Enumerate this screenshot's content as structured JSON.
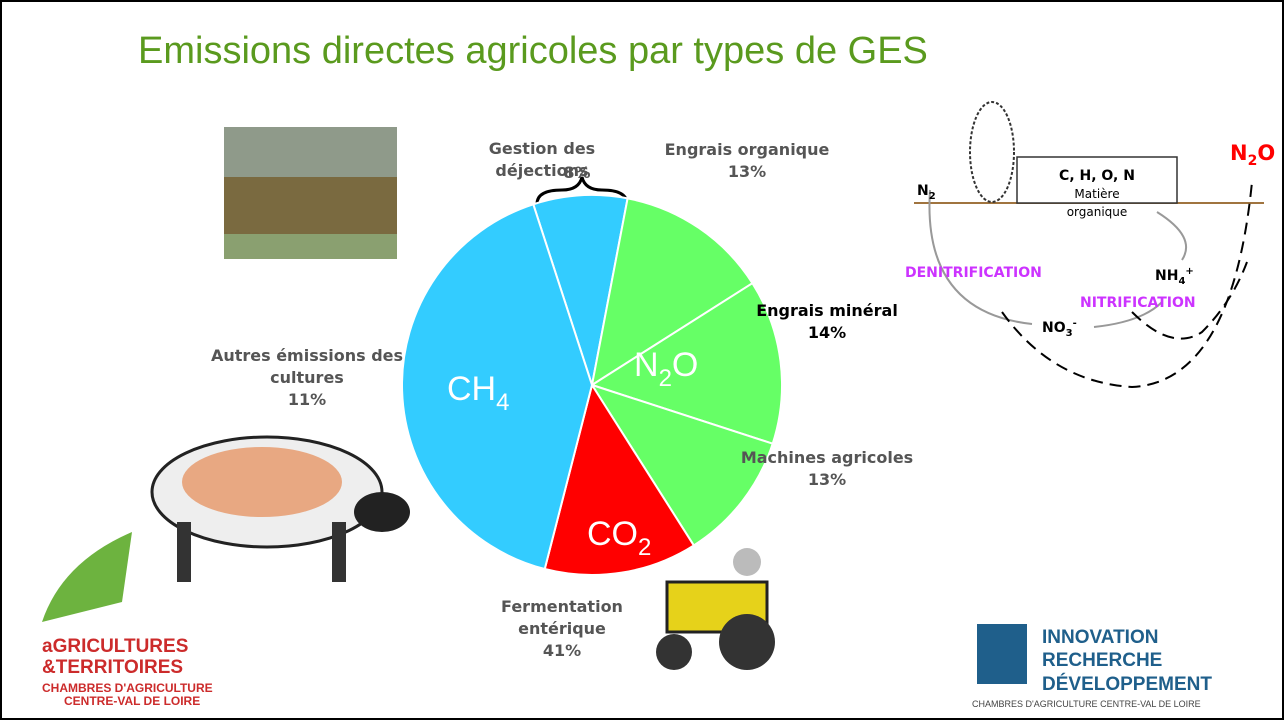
{
  "title": "Emissions directes agricoles par types de GES",
  "chart_data": {
    "type": "pie",
    "categories": [
      "Gestion des déjections",
      "Engrais organique",
      "Engrais minéral",
      "Autres émissions des cultures",
      "Machines agricoles",
      "Fermentation entérique"
    ],
    "values": [
      8,
      13,
      14,
      11,
      13,
      41
    ],
    "value_labels": [
      "8%",
      "13%",
      "14%",
      "11%",
      "13%",
      "41%"
    ],
    "colors": [
      "#33ccff",
      "#66ff66",
      "#66ff66",
      "#66ff66",
      "#ff0000",
      "#33ccff"
    ]
  },
  "gas_labels": [
    {
      "text": "CH",
      "sub": "4"
    },
    {
      "text": "N",
      "sub": "2",
      "tail": "O"
    },
    {
      "text": "CO",
      "sub": "2"
    }
  ],
  "cycle": {
    "n2": {
      "text": "N",
      "sub": "2"
    },
    "box_title": "C, H, O, N",
    "box_text": [
      "Matière",
      "organique"
    ],
    "nh4": {
      "text": "NH",
      "sub": "4",
      "sup": "+"
    },
    "no3": {
      "text": "NO",
      "sub": "3",
      "sup": "-"
    },
    "n2o": {
      "text": "N",
      "sub": "2",
      "tail": "O"
    },
    "denitrification": "DENITRIFICATION",
    "nitrification": "NITRIFICATION"
  },
  "logo_left": {
    "line1": "aGRICULTURES",
    "line2": "&TERRITOIRES",
    "line3": "CHAMBRES D'AGRICULTURE",
    "line4": "CENTRE-VAL DE LOIRE"
  },
  "logo_right": {
    "line1": "INNOVATION",
    "line2": "RECHERCHE",
    "line3": "DÉVELOPPEMENT",
    "line4": "CHAMBRES D'AGRICULTURE CENTRE-VAL DE LOIRE"
  }
}
